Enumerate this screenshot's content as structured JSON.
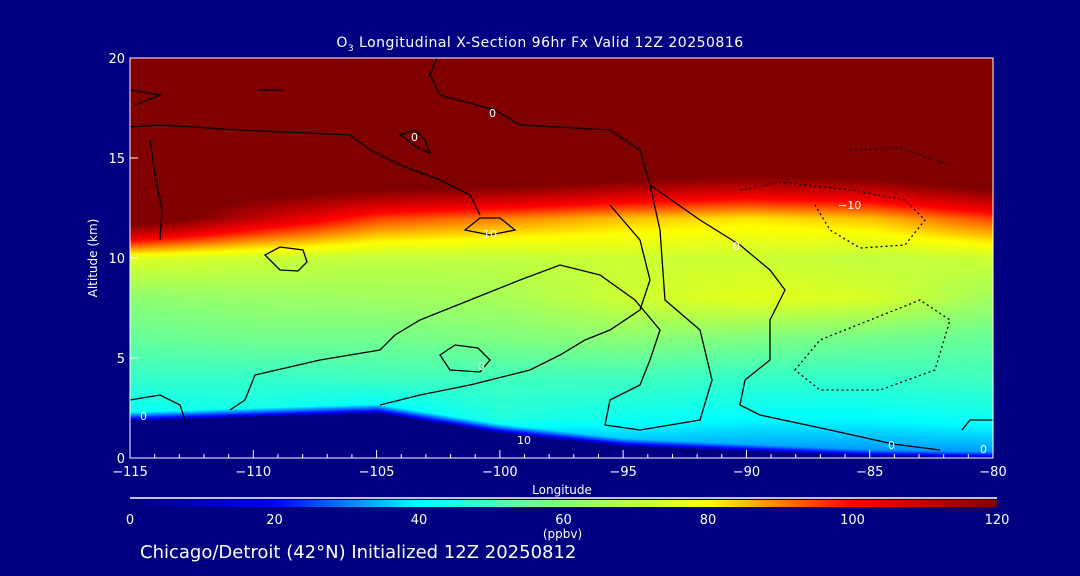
{
  "chart_data": {
    "type": "heatmap",
    "title_prefix": "O",
    "title_sub": "3",
    "title_rest": " Longitudinal X-Section 96hr  Fx Valid 12Z 20250816",
    "xlabel": "Longitude",
    "ylabel": "Altitude (km)",
    "xlim": [
      -115,
      -80
    ],
    "ylim": [
      0,
      20
    ],
    "x_ticks": [
      "−115",
      "−110",
      "−105",
      "−100",
      "−95",
      "−90",
      "−85",
      "−80"
    ],
    "y_ticks": [
      "0",
      "5",
      "10",
      "15",
      "20"
    ],
    "grid_lon": [
      -115,
      -110,
      -105,
      -100,
      -95,
      -90,
      -85,
      -80
    ],
    "grid_alt": [
      0,
      2,
      4,
      6,
      8,
      10,
      12,
      14,
      16,
      18,
      20
    ],
    "ozone_ppbv": [
      [
        0,
        40,
        48,
        56,
        62,
        75,
        130,
        130,
        130,
        130,
        130
      ],
      [
        0,
        42,
        48,
        58,
        64,
        72,
        110,
        130,
        130,
        130,
        130
      ],
      [
        0,
        35,
        50,
        58,
        65,
        70,
        95,
        130,
        130,
        130,
        130
      ],
      [
        20,
        45,
        50,
        60,
        66,
        70,
        90,
        128,
        130,
        130,
        130
      ],
      [
        30,
        42,
        50,
        62,
        72,
        72,
        85,
        122,
        130,
        130,
        130
      ],
      [
        30,
        40,
        48,
        60,
        76,
        72,
        82,
        118,
        130,
        130,
        130
      ],
      [
        30,
        40,
        48,
        58,
        74,
        70,
        85,
        120,
        130,
        130,
        130
      ],
      [
        30,
        42,
        50,
        56,
        65,
        72,
        95,
        130,
        130,
        130,
        130
      ]
    ],
    "terrain_km": [
      1.9,
      2.1,
      2.3,
      1.3,
      0.65,
      0.4,
      0.15,
      0.05
    ],
    "contour_labels": [
      "0",
      "0",
      "0",
      "0",
      "10",
      "−10",
      "10",
      "0",
      "0",
      "0"
    ],
    "colorbar": {
      "range": [
        0,
        120
      ],
      "ticks": [
        "0",
        "20",
        "40",
        "60",
        "80",
        "100",
        "120"
      ],
      "units": "(ppbv)",
      "colors": [
        "#000080",
        "#0000ff",
        "#00ffff",
        "#80ff80",
        "#ffff00",
        "#ff0000",
        "#800000"
      ]
    }
  },
  "footer": "Chicago/Detroit (42°N) Initialized 12Z 20250812"
}
